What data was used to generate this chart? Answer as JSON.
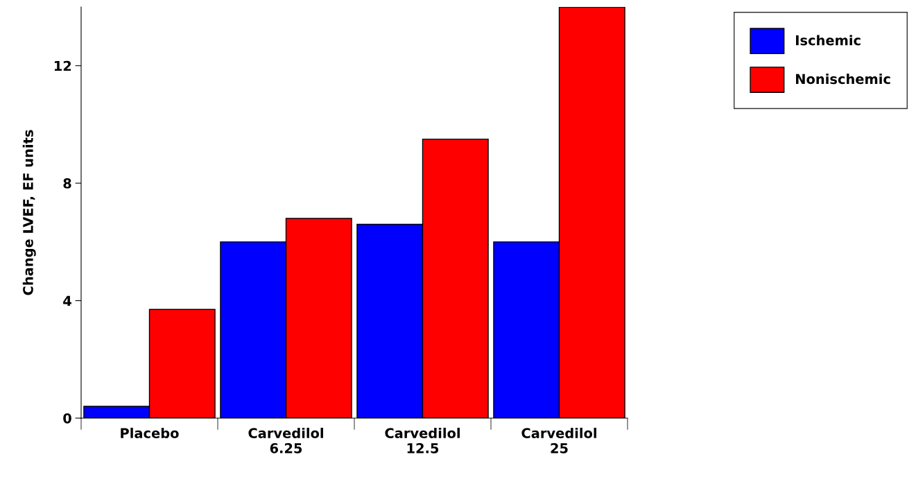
{
  "chart_data": {
    "type": "bar",
    "ylabel": "Change LVEF, EF units",
    "categories": [
      "Placebo",
      "Carvedilol\n6.25",
      "Carvedilol\n12.5",
      "Carvedilol\n25"
    ],
    "series": [
      {
        "name": "Ischemic",
        "color": "#0000ff",
        "values": [
          0.4,
          6.0,
          6.6,
          6.0
        ]
      },
      {
        "name": "Nonischemic",
        "color": "#ff0000",
        "values": [
          3.7,
          6.8,
          9.5,
          14.0
        ]
      }
    ],
    "ylim": [
      0,
      14
    ],
    "yticks": [
      0,
      4,
      8,
      12
    ],
    "grid": false,
    "legend": "top right"
  }
}
